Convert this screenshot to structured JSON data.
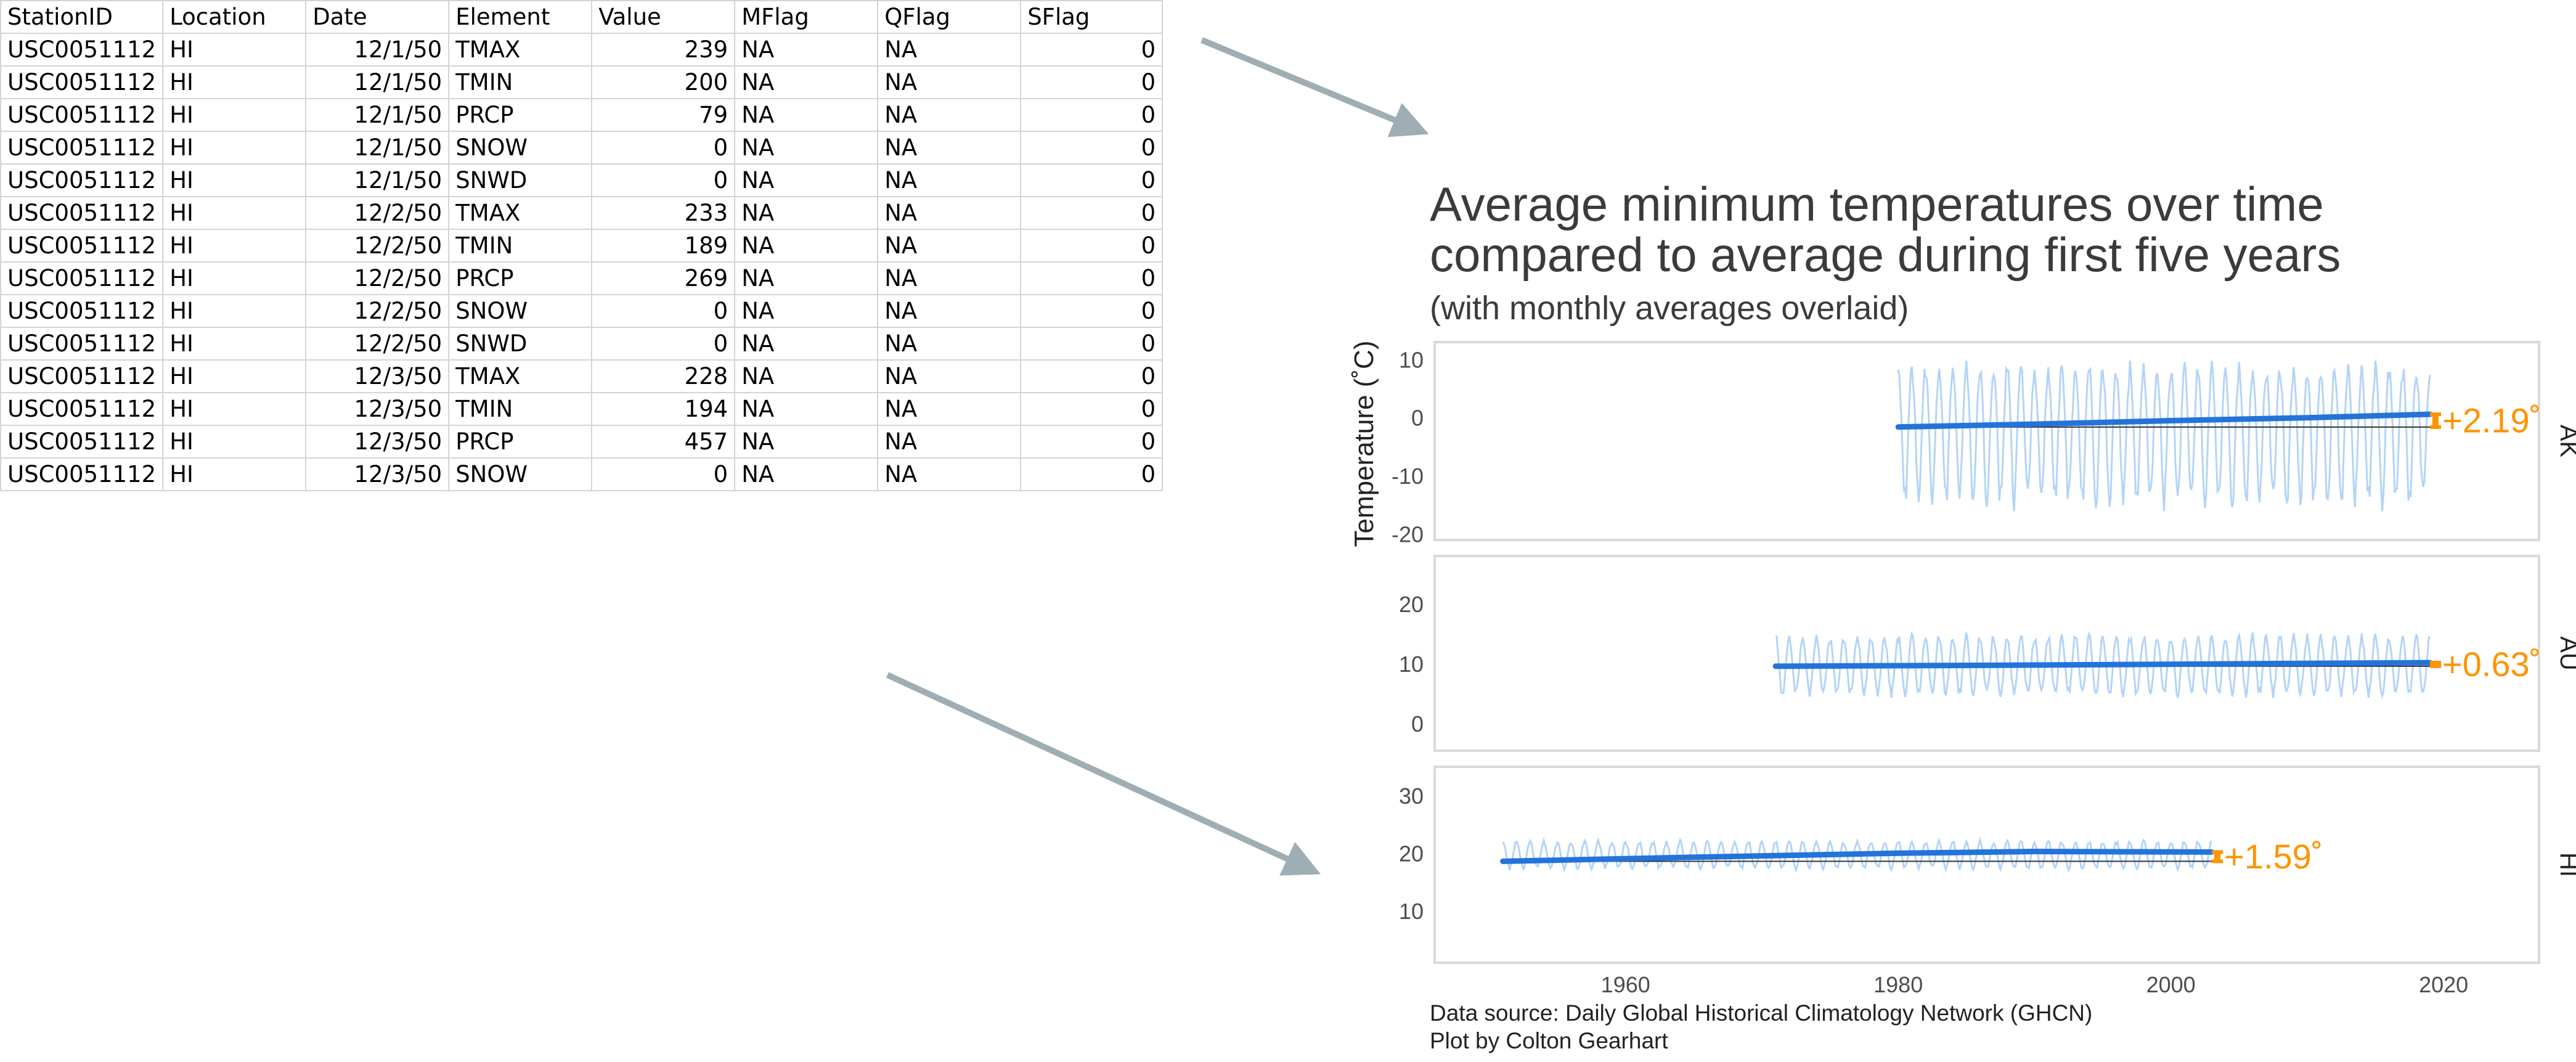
{
  "table": {
    "columns": [
      "StationID",
      "Location",
      "Date",
      "Element",
      "Value",
      "MFlag",
      "QFlag",
      "SFlag"
    ],
    "rows": [
      [
        "USC0051112",
        "HI",
        "12/1/50",
        "TMAX",
        "239",
        "NA",
        "NA",
        "0"
      ],
      [
        "USC0051112",
        "HI",
        "12/1/50",
        "TMIN",
        "200",
        "NA",
        "NA",
        "0"
      ],
      [
        "USC0051112",
        "HI",
        "12/1/50",
        "PRCP",
        "79",
        "NA",
        "NA",
        "0"
      ],
      [
        "USC0051112",
        "HI",
        "12/1/50",
        "SNOW",
        "0",
        "NA",
        "NA",
        "0"
      ],
      [
        "USC0051112",
        "HI",
        "12/1/50",
        "SNWD",
        "0",
        "NA",
        "NA",
        "0"
      ],
      [
        "USC0051112",
        "HI",
        "12/2/50",
        "TMAX",
        "233",
        "NA",
        "NA",
        "0"
      ],
      [
        "USC0051112",
        "HI",
        "12/2/50",
        "TMIN",
        "189",
        "NA",
        "NA",
        "0"
      ],
      [
        "USC0051112",
        "HI",
        "12/2/50",
        "PRCP",
        "269",
        "NA",
        "NA",
        "0"
      ],
      [
        "USC0051112",
        "HI",
        "12/2/50",
        "SNOW",
        "0",
        "NA",
        "NA",
        "0"
      ],
      [
        "USC0051112",
        "HI",
        "12/2/50",
        "SNWD",
        "0",
        "NA",
        "NA",
        "0"
      ],
      [
        "USC0051112",
        "HI",
        "12/3/50",
        "TMAX",
        "228",
        "NA",
        "NA",
        "0"
      ],
      [
        "USC0051112",
        "HI",
        "12/3/50",
        "TMIN",
        "194",
        "NA",
        "NA",
        "0"
      ],
      [
        "USC0051112",
        "HI",
        "12/3/50",
        "PRCP",
        "457",
        "NA",
        "NA",
        "0"
      ],
      [
        "USC0051112",
        "HI",
        "12/3/50",
        "SNOW",
        "0",
        "NA",
        "NA",
        "0"
      ]
    ]
  },
  "colors": {
    "arrow": "#9fadb4",
    "trend": "#2473d9",
    "monthly": "#b3d4f7",
    "baseline": "#333333",
    "change": "#ff9300",
    "panel_border": "#d9d9d9"
  },
  "chart_data": {
    "type": "line",
    "title": "Average minimum temperatures over time compared to average during first five years",
    "title_lines": [
      "Average minimum temperatures over time",
      "compared to average during first five years"
    ],
    "subtitle": "(with monthly averages overlaid)",
    "ylabel": "Temperature (˚C)",
    "xlabel": "",
    "xlim": [
      1946,
      2027
    ],
    "xticks": [
      1960,
      1980,
      2000,
      2020
    ],
    "x_tick_labels": [
      "1960",
      "1980",
      "2000",
      "2020"
    ],
    "grid": false,
    "caption_lines": [
      "Data source: Daily Global Historical Climatology Network (GHCN)",
      "Plot by Colton Gearhart"
    ],
    "panels": [
      {
        "strip": "AK",
        "ylim": [
          -21,
          13
        ],
        "yticks": [
          10,
          0,
          -10,
          -20
        ],
        "y_tick_labels": [
          "10",
          "0",
          "-10",
          "-20"
        ],
        "baseline": -1.6,
        "trend": {
          "x": [
            1980,
            1990,
            2000,
            2010,
            2019
          ],
          "y": [
            -1.6,
            -1.1,
            -0.5,
            0.0,
            0.6
          ]
        },
        "monthly": {
          "start": 1980,
          "end": 2019,
          "mean": -1.0,
          "amp_low": 13.5,
          "amp_high": 9.5
        },
        "change_label": "+2.19˚"
      },
      {
        "strip": "AU",
        "ylim": [
          -4.5,
          28
        ],
        "yticks": [
          20,
          10,
          0
        ],
        "y_tick_labels": [
          "20",
          "10",
          "0"
        ],
        "baseline": 9.6,
        "trend": {
          "x": [
            1971,
            1990,
            2019
          ],
          "y": [
            9.6,
            9.8,
            10.2
          ]
        },
        "monthly": {
          "start": 1971,
          "end": 2019,
          "mean": 9.8,
          "amp_low": 4.8,
          "amp_high": 4.8
        },
        "change_label": "+0.63˚"
      },
      {
        "strip": "HI",
        "ylim": [
          1,
          35
        ],
        "yticks": [
          30,
          20,
          10
        ],
        "y_tick_labels": [
          "30",
          "20",
          "10"
        ],
        "baseline": 18.6,
        "trend": {
          "x": [
            1951,
            1965,
            1980,
            1990,
            2003
          ],
          "y": [
            18.6,
            19.3,
            20.0,
            20.3,
            20.2
          ]
        },
        "monthly": {
          "start": 1951,
          "end": 2003,
          "mean": 19.7,
          "amp_low": 2.3,
          "amp_high": 2.3
        },
        "change_label": "+1.59˚"
      }
    ]
  }
}
